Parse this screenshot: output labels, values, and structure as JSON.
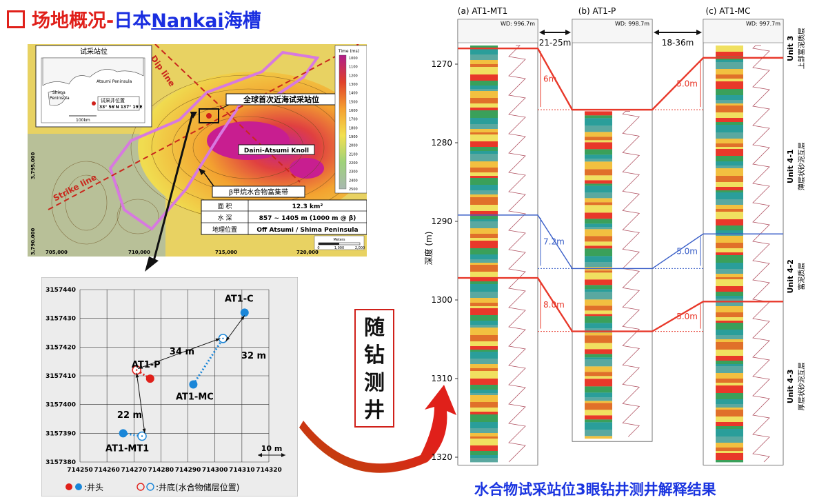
{
  "title": {
    "prefix": "场地概况-",
    "place": "日本",
    "trough": "Nankai",
    "suffix": "海槽"
  },
  "map": {
    "inset_title": "试采站位",
    "inset_shima": "Shima",
    "inset_peninsula": "Peninsula",
    "inset_atsumi": "Atsumi Peninsula",
    "inset_well_label": "试采井位置",
    "inset_coords": "33° 56'N 137° 19'E",
    "inset_scale": "100km",
    "dip_line": "Dip line",
    "strike_line": "Strike line",
    "site_label": "全球首次近海试采站位",
    "knoll_label": "Daini-Atsumi Knoll",
    "zone_title": "β甲烷水合物富集带",
    "table": [
      {
        "key": "面  积",
        "value": "12.3 km²"
      },
      {
        "key": "水  深",
        "value": "857 ~ 1405 m (1000 m @ β)"
      },
      {
        "key": "地理位置",
        "value": "Off Atsumi / Shima Peninsula"
      }
    ],
    "colorbar_title": "Time (ms)",
    "colorbar_ticks": [
      "1000",
      "1100",
      "1200",
      "1300",
      "1400",
      "1500",
      "1600",
      "1700",
      "1800",
      "1900",
      "2000",
      "2100",
      "2200",
      "2300",
      "2400",
      "2500"
    ],
    "x_ticks": [
      "705,000",
      "710,000",
      "715,000",
      "720,000"
    ],
    "y_ticks": [
      "3,795,000",
      "3,790,000"
    ],
    "scale_title": "Meters",
    "scale_ticks": [
      "0",
      "1,000",
      "2,000"
    ]
  },
  "chart_data": {
    "type": "scatter",
    "x_ticks": [
      "714250",
      "714260",
      "714270",
      "714280",
      "714290",
      "714300",
      "714310",
      "714320"
    ],
    "y_ticks": [
      "3157440",
      "3157430",
      "3157420",
      "3157410",
      "3157400",
      "3157390",
      "3157380"
    ],
    "xlim": [
      714250,
      714320
    ],
    "ylim": [
      3157380,
      3157440
    ],
    "series": [
      {
        "name": "AT1-P",
        "color": "#e0201a",
        "wellhead": [
          714276,
          3157409
        ],
        "bottom": [
          714271,
          3157412
        ]
      },
      {
        "name": "AT1-MC",
        "color": "#1a86d8",
        "wellhead": [
          714292,
          3157407
        ],
        "bottom": [
          714303,
          3157423
        ]
      },
      {
        "name": "AT1-C",
        "color": "#1a86d8",
        "wellhead": [
          714311,
          3157432
        ]
      },
      {
        "name": "AT1-MT1",
        "color": "#1a86d8",
        "wellhead": [
          714266,
          3157390
        ],
        "bottom": [
          714273,
          3157389
        ]
      }
    ],
    "distances": [
      "34 m",
      "32 m",
      "22 m"
    ],
    "scale_label": "10 m",
    "legend_head": ":井头",
    "legend_bottom": ":井底(水合物储层位置)"
  },
  "vertical_text": "随钻测井",
  "logs": {
    "wells": [
      {
        "name": "(a) AT1-MT1",
        "wd": "WD: 996.7m"
      },
      {
        "name": "(b) AT1-P",
        "wd": "WD: 998.7m"
      },
      {
        "name": "(c) AT1-MC",
        "wd": "WD: 997.7m"
      }
    ],
    "spacings": [
      "21-25m",
      "18-36m"
    ],
    "y_label": "深度 (m)",
    "depth_ticks": [
      "1270",
      "1280",
      "1290",
      "1300",
      "1310",
      "1320"
    ],
    "offsets": [
      {
        "label": "6m",
        "color": "#e8382a"
      },
      {
        "label": "7.2m",
        "color": "#3a5fc8"
      },
      {
        "label": "8.0m",
        "color": "#e8382a"
      },
      {
        "label": "5.0m",
        "color": "#e8382a"
      },
      {
        "label": "5.0m",
        "color": "#3a5fc8"
      },
      {
        "label": "5.0m",
        "color": "#e8382a"
      }
    ],
    "units": [
      {
        "en": "Unit 3",
        "zh": "上部富泥质层"
      },
      {
        "en": "Unit 4-1",
        "zh": "薄层状砂泥互层"
      },
      {
        "en": "Unit 4-2",
        "zh": "富泥质层"
      },
      {
        "en": "Unit 4-3",
        "zh": "厚层状砂泥互层"
      }
    ]
  },
  "caption": "水合物试采站位3眼钻井测井解释结果",
  "colors": {
    "red": "#e0201a",
    "blue": "#1a34e0",
    "well_blue": "#1a86d8"
  }
}
